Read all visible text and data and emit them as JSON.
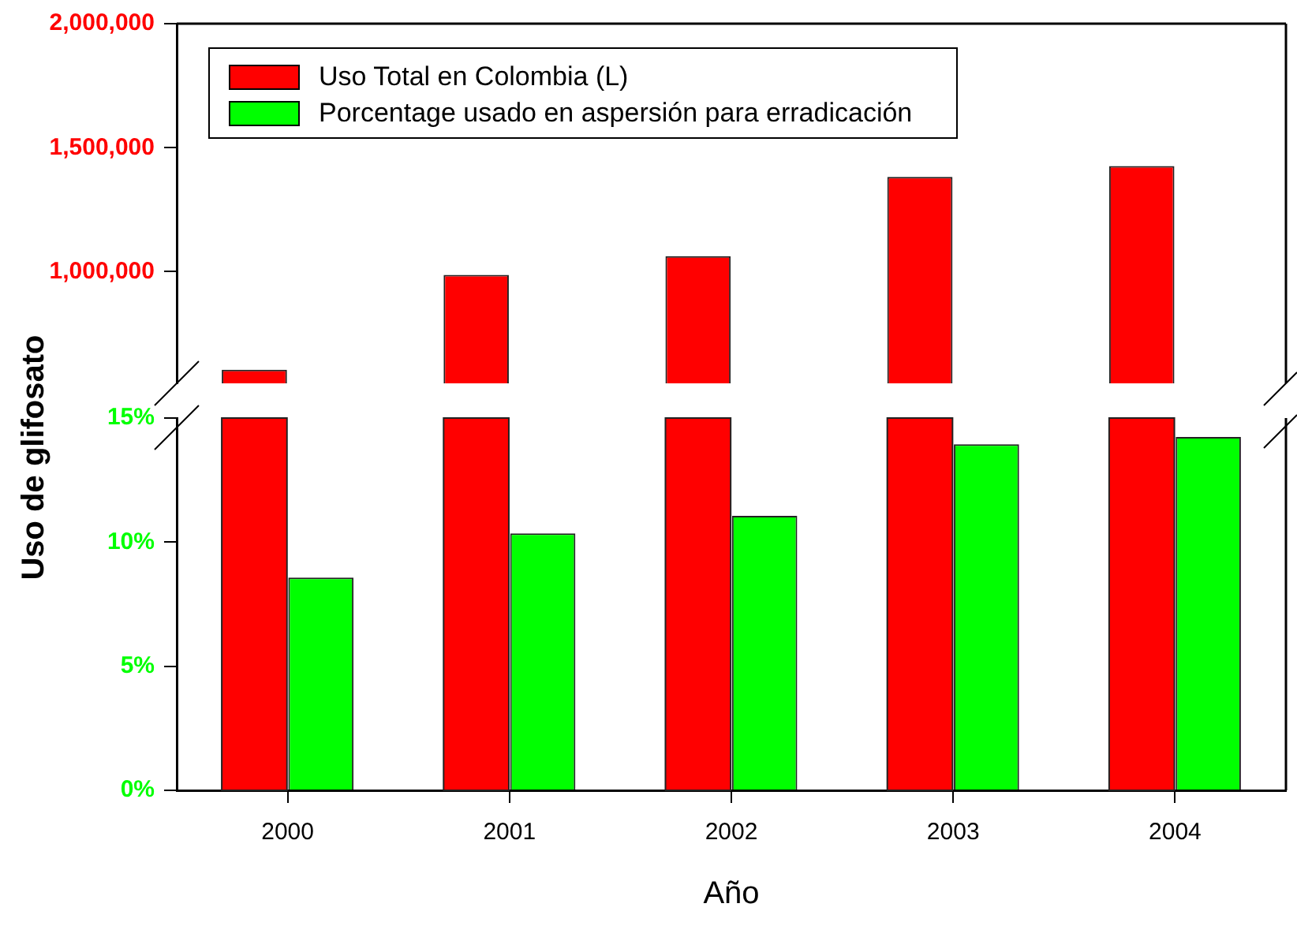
{
  "chart_data": [
    {
      "type": "bar",
      "categories": [
        "2000",
        "2001",
        "2002",
        "2003",
        "2004"
      ],
      "series": [
        {
          "name": "Uso Total en Colombia (L)",
          "color": "#ff0000",
          "values": [
            605000,
            987000,
            1063000,
            1382000,
            1426000
          ]
        },
        {
          "name": "Porcentage usado en aspersión para erradicación",
          "color": "#00ff00",
          "values": [
            null,
            null,
            null,
            null,
            null
          ]
        }
      ],
      "ylim": [
        550000,
        2000000
      ],
      "yticks": [
        {
          "value": 1000000,
          "label": "1,000,000"
        },
        {
          "value": 1500000,
          "label": "1,500,000"
        },
        {
          "value": 2000000,
          "label": "2,000,000"
        }
      ],
      "tick_labels": "y",
      "legend": "top left",
      "grid": false
    },
    {
      "type": "bar",
      "xlabel": "Año",
      "ylabel": "Uso de glifosato",
      "categories": [
        "2000",
        "2001",
        "2002",
        "2003",
        "2004"
      ],
      "series": [
        {
          "color": "#ff0000",
          "values": [
            null,
            null,
            null,
            null,
            null
          ]
        },
        {
          "color": "#00ff00",
          "values": [
            8.57,
            10.35,
            11.06,
            13.94,
            14.24
          ]
        }
      ],
      "ylim": [
        0,
        15
      ],
      "yticks": [
        {
          "value": 0,
          "label": "0%"
        },
        {
          "value": 5,
          "label": "5%"
        },
        {
          "value": 10,
          "label": "10%"
        },
        {
          "value": 15,
          "label": "15%"
        }
      ],
      "legend": false,
      "grid": false
    }
  ]
}
